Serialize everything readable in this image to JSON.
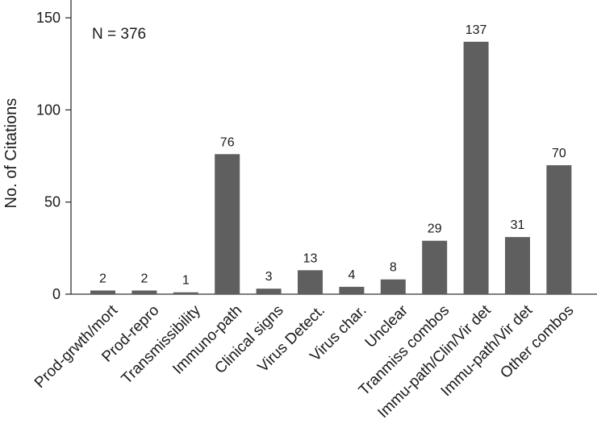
{
  "chart_data": {
    "type": "bar",
    "categories": [
      "Prod-grwth/mort",
      "Prod-repro",
      "Transmissibility",
      "Immuno-path",
      "Clinical signs",
      "Virus Detect.",
      "Virus char.",
      "Unclear",
      "Tranmiss combos",
      "Immu-path/Clin/Vir det",
      "Immu-path/Vir det",
      "Other combos"
    ],
    "values": [
      2,
      2,
      1,
      76,
      3,
      13,
      4,
      8,
      29,
      137,
      31,
      70
    ],
    "value_labels": [
      "2",
      "2",
      "1",
      "76",
      "3",
      "13",
      "4",
      "8",
      "29",
      "137",
      "31",
      "70"
    ],
    "ylabel": "No. of Citations",
    "ylim": [
      0,
      160
    ],
    "yticks": [
      0,
      50,
      100,
      150
    ],
    "annotation": "N = 376",
    "grid": false,
    "bar_color": "#5f5f5f"
  }
}
